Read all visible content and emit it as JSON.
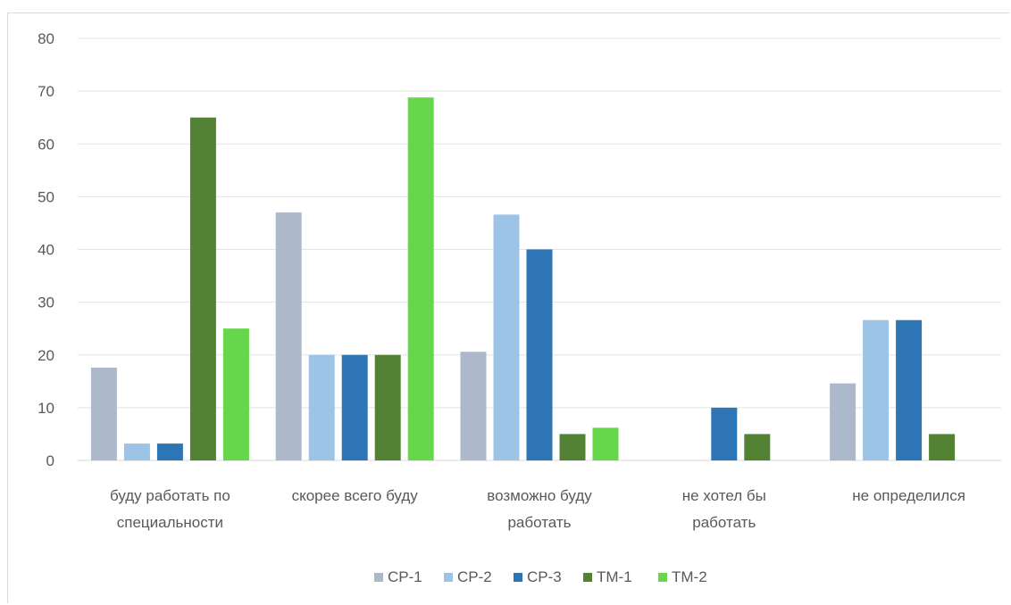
{
  "chart_data": {
    "type": "bar",
    "title": "",
    "xlabel": "",
    "ylabel": "",
    "ylim": [
      0,
      80
    ],
    "yticks": [
      0,
      10,
      20,
      30,
      40,
      50,
      60,
      70,
      80
    ],
    "grid": true,
    "legend_position": "bottom",
    "categories": [
      [
        "буду работать по",
        "специальности"
      ],
      [
        "скорее всего буду"
      ],
      [
        "возможно буду",
        "работать"
      ],
      [
        "не хотел бы",
        "работать"
      ],
      [
        "не определился"
      ]
    ],
    "series": [
      {
        "name": "СР-1",
        "color": "#adb9ca",
        "values": [
          17.6,
          47,
          20.6,
          0,
          14.6
        ]
      },
      {
        "name": "СР-2",
        "color": "#9dc3e6",
        "values": [
          3.2,
          20,
          46.6,
          0,
          26.6
        ]
      },
      {
        "name": "СР-3",
        "color": "#2e75b6",
        "values": [
          3.2,
          20,
          40,
          10,
          26.6
        ]
      },
      {
        "name": "ТМ-1",
        "color": "#548235",
        "values": [
          65,
          20,
          5,
          5,
          5
        ]
      },
      {
        "name": "ТМ-2",
        "color": "#66d64a",
        "values": [
          25,
          68.8,
          6.2,
          0,
          0
        ]
      }
    ]
  }
}
